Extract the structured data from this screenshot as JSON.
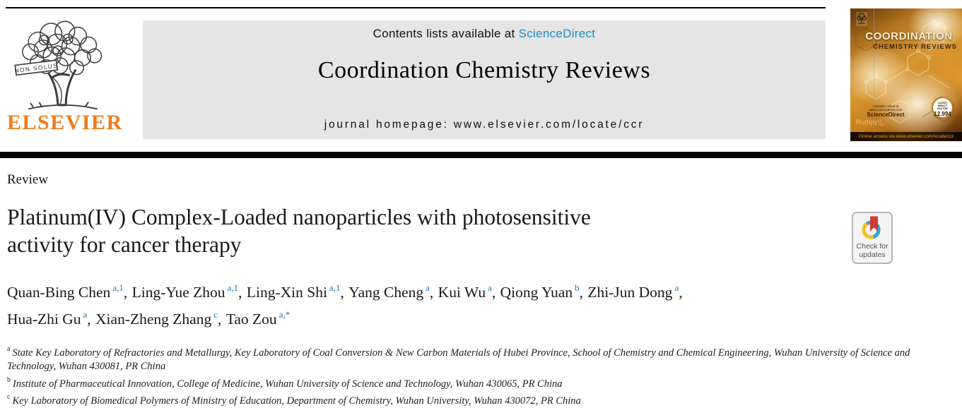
{
  "colors": {
    "elsevier_orange": "#ee7c1c",
    "link_blue": "#1d8dc4",
    "sup_blue": "#2878ae",
    "banner_gray": "#e5e5e5",
    "check_ring_blue": "#35a8c9",
    "check_ring_yellow": "#f2c31f",
    "check_bookmark_red": "#d23b32"
  },
  "header": {
    "contents_prefix": "Contents lists available at ",
    "sciencedirect_label": "ScienceDirect",
    "journal_title": "Coordination Chemistry Reviews",
    "homepage_prefix": "journal homepage: ",
    "homepage_url": "www.elsevier.com/locate/ccr",
    "elsevier_wordmark": "ELSEVIER",
    "elsevier_motto": "NON SOLUS"
  },
  "cover": {
    "title_line1": "COORDINATION",
    "title_line2": "CHEMISTRY REVIEWS",
    "available_online": "Available online at www.sciencedirect.com",
    "sciencedirect_label": "ScienceDirect",
    "impact_factor_label": "LATEST IMPACT FACTOR",
    "impact_factor_value": "12.994",
    "molecule_label": "Ru(bpy)]",
    "molecule_subscript": "2",
    "online_access_text": "Online access via www.elsevier.com/locate/ccr"
  },
  "article": {
    "type_label": "Review",
    "title_line1": "Platinum(IV) Complex-Loaded nanoparticles with photosensitive",
    "title_line2": "activity for cancer therapy",
    "check_updates_line1": "Check for",
    "check_updates_line2": "updates",
    "authors_line1": [
      {
        "name": "Quan-Bing Chen",
        "sup": "a,1",
        "sep": ", "
      },
      {
        "name": "Ling-Yue Zhou",
        "sup": "a,1",
        "sep": ", "
      },
      {
        "name": "Ling-Xin Shi",
        "sup": "a,1",
        "sep": ", "
      },
      {
        "name": "Yang Cheng",
        "sup": "a",
        "sep": ", "
      },
      {
        "name": "Kui Wu",
        "sup": "a",
        "sep": ", "
      },
      {
        "name": "Qiong Yuan",
        "sup": "b",
        "sep": ", "
      },
      {
        "name": "Zhi-Jun Dong",
        "sup": "a",
        "sep": ","
      }
    ],
    "authors_line2": [
      {
        "name": "Hua-Zhi Gu",
        "sup": "a",
        "sep": ", "
      },
      {
        "name": "Xian-Zheng Zhang",
        "sup": "c",
        "sep": ", "
      },
      {
        "name": "Tao Zou",
        "sup": "a,*",
        "sep": ""
      }
    ],
    "affiliations": [
      {
        "sup": "a",
        "text": "State Key Laboratory of Refractories and Metallurgy, Key Laboratory of Coal Conversion & New Carbon Materials of Hubei Province, School of Chemistry and Chemical Engineering, Wuhan University of Science and Technology, Wuhan 430081, PR China"
      },
      {
        "sup": "b",
        "text": "Institute of Pharmaceutical Innovation, College of Medicine, Wuhan University of Science and Technology, Wuhan 430065, PR China"
      },
      {
        "sup": "c",
        "text": "Key Laboratory of Biomedical Polymers of Ministry of Education, Department of Chemistry, Wuhan University, Wuhan 430072, PR China"
      }
    ]
  }
}
